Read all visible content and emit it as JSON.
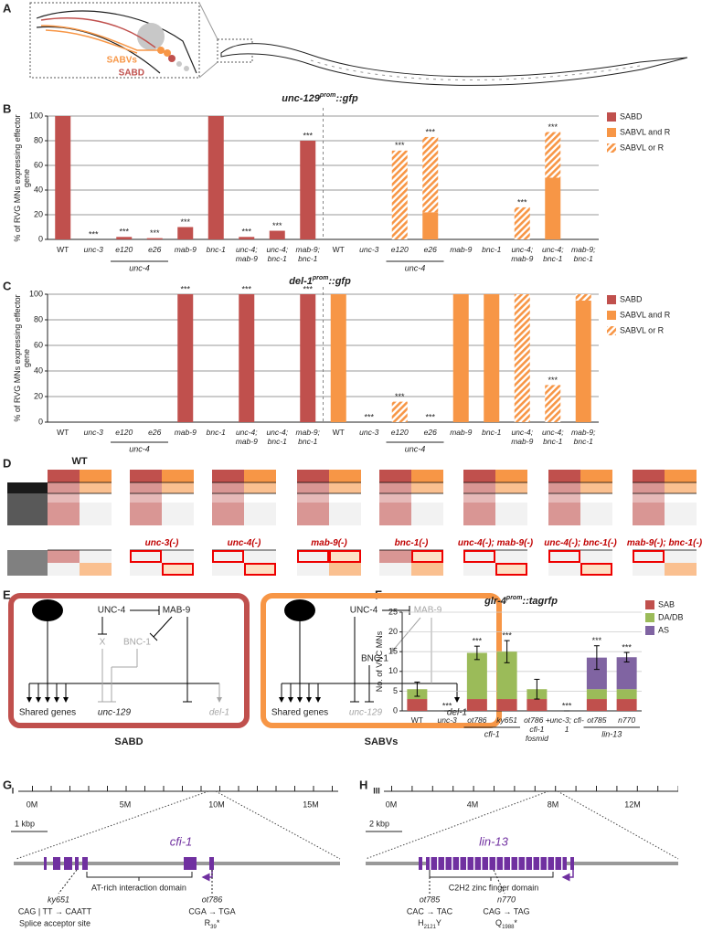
{
  "panel_labels": [
    "A",
    "B",
    "C",
    "D",
    "E",
    "F",
    "G",
    "H"
  ],
  "panel_a": {
    "labels": [
      "SABVs",
      "SABD"
    ]
  },
  "chart_data": [
    {
      "type": "bar",
      "title": {
        "gene": "unc-129",
        "superscript": "prom",
        "suffix": "::gfp"
      },
      "ylabel": "% of RVG MNs expressing effector gene",
      "categories": [
        "WT",
        "unc-3",
        "e120",
        "e26",
        "mab-9",
        "bnc-1",
        "unc-4; mab-9",
        "unc-4; bnc-1",
        "mab-9; bnc-1",
        "WT",
        "unc-3",
        "e120",
        "e26",
        "mab-9",
        "bnc-1",
        "unc-4; mab-9",
        "unc-4; bnc-1",
        "mab-9; bnc-1"
      ],
      "group_labels": [
        "unc-4",
        "unc-4"
      ],
      "series": [
        {
          "name": "SABD",
          "color": "#c0504d",
          "values": [
            100,
            0,
            2,
            1,
            10,
            100,
            2,
            7,
            80,
            null,
            null,
            null,
            null,
            null,
            null,
            null,
            null,
            null
          ]
        },
        {
          "name": "SABVL and R",
          "color": "#f79646",
          "values": [
            null,
            null,
            null,
            null,
            null,
            null,
            null,
            null,
            null,
            0,
            0,
            0,
            22,
            0,
            0,
            0,
            50,
            0
          ]
        },
        {
          "name": "SABVL or R",
          "color": "#f79646",
          "pattern": "hatch",
          "values": [
            null,
            null,
            null,
            null,
            null,
            null,
            null,
            null,
            null,
            0,
            0,
            72,
            61,
            0,
            0,
            26,
            37,
            0
          ]
        }
      ],
      "significance": [
        null,
        "***",
        "***",
        "***",
        "***",
        null,
        "***",
        "***",
        "***",
        null,
        null,
        "***",
        "***",
        null,
        null,
        "***",
        "***",
        null
      ],
      "ylim": [
        0,
        100
      ],
      "yticks": [
        0,
        20,
        40,
        60,
        80,
        100
      ],
      "grid": true
    },
    {
      "type": "bar",
      "title": {
        "gene": "del-1",
        "superscript": "prom",
        "suffix": "::gfp"
      },
      "ylabel": "% of RVG MNs expressing effector gene",
      "categories": [
        "WT",
        "unc-3",
        "e120",
        "e26",
        "mab-9",
        "bnc-1",
        "unc-4; mab-9",
        "unc-4; bnc-1",
        "mab-9; bnc-1",
        "WT",
        "unc-3",
        "e120",
        "e26",
        "mab-9",
        "bnc-1",
        "unc-4; mab-9",
        "unc-4; bnc-1",
        "mab-9; bnc-1"
      ],
      "group_labels": [
        "unc-4",
        "unc-4"
      ],
      "series": [
        {
          "name": "SABD",
          "color": "#c0504d",
          "values": [
            0,
            0,
            0,
            0,
            100,
            0,
            100,
            0,
            100,
            null,
            null,
            null,
            null,
            null,
            null,
            null,
            null,
            null
          ]
        },
        {
          "name": "SABVL and R",
          "color": "#f79646",
          "values": [
            null,
            null,
            null,
            null,
            null,
            null,
            null,
            null,
            null,
            100,
            0,
            0,
            0,
            100,
            100,
            0,
            0,
            95
          ]
        },
        {
          "name": "SABVL or R",
          "color": "#f79646",
          "pattern": "hatch",
          "values": [
            null,
            null,
            null,
            null,
            null,
            null,
            null,
            null,
            null,
            0,
            0,
            16,
            0,
            0,
            0,
            100,
            29,
            5
          ]
        }
      ],
      "significance": [
        null,
        null,
        null,
        null,
        "***",
        null,
        "***",
        null,
        "***",
        null,
        "***",
        "***",
        "***",
        null,
        null,
        null,
        "***",
        null
      ],
      "ylim": [
        0,
        100
      ],
      "yticks": [
        0,
        20,
        40,
        60,
        80,
        100
      ],
      "grid": true
    },
    {
      "type": "bar",
      "title": {
        "gene": "glr-4",
        "superscript": "prom",
        "suffix": "::tagrfp"
      },
      "ylabel": "No. of VNC MNs",
      "categories": [
        "WT",
        "unc-3",
        "ot786",
        "ky651",
        "ot786 + cfi-1 fosmid",
        "unc-3; cfi-1",
        "ot785",
        "n770"
      ],
      "group_labels": [
        "cfi-1",
        "lin-13"
      ],
      "series": [
        {
          "name": "SAB",
          "color": "#c0504d",
          "values": [
            3,
            0,
            3,
            3,
            3,
            0,
            3,
            3
          ]
        },
        {
          "name": "DA/DB",
          "color": "#9bbb59",
          "values": [
            2.5,
            0,
            11.7,
            12,
            2.5,
            0,
            2.5,
            2.5
          ]
        },
        {
          "name": "AS",
          "color": "#8064a2",
          "values": [
            0,
            0,
            0,
            0,
            0,
            0,
            8,
            8.1
          ]
        }
      ],
      "errors": [
        1.8,
        0,
        1.7,
        2.8,
        2.5,
        0,
        3,
        1.2
      ],
      "significance": [
        null,
        "***",
        "***",
        "***",
        null,
        "***",
        "***",
        "***"
      ],
      "ylim": [
        0,
        25
      ],
      "yticks": [
        0,
        5,
        10,
        15,
        20,
        25
      ],
      "grid": true
    }
  ],
  "panel_d": {
    "wt": "WT",
    "mutants": [
      "unc-3(-)",
      "unc-4(-)",
      "mab-9(-)",
      "bnc-1(-)",
      "unc-4(-); mab-9(-)",
      "unc-4(-); bnc-1(-)",
      "mab-9(-); bnc-1(-)"
    ]
  },
  "panel_e": {
    "left": {
      "title": "SABD",
      "factors": [
        "UNC-4",
        "MAB-9",
        "X",
        "BNC-1"
      ],
      "genes": [
        "Shared genes",
        "unc-129",
        "del-1"
      ]
    },
    "right": {
      "title": "SABVs",
      "factors": [
        "UNC-4",
        "MAB-9",
        "BNC-1"
      ],
      "genes": [
        "Shared genes",
        "unc-129",
        "del-1"
      ]
    }
  },
  "panel_g": {
    "chromosome": "I",
    "ticks": [
      "0M",
      "5M",
      "10M",
      "15M"
    ],
    "scale": "1 kbp",
    "gene": "cfi-1",
    "domain": "AT-rich interaction domain",
    "mutations": [
      {
        "allele": "ky651",
        "change": "CAG | TT → CAATT",
        "effect": "Splice acceptor site"
      },
      {
        "allele": "ot786",
        "change": "CGA → TGA",
        "protein": [
          "R",
          "39",
          "*"
        ]
      }
    ]
  },
  "panel_h": {
    "chromosome": "III",
    "ticks": [
      "0M",
      "4M",
      "8M",
      "12M"
    ],
    "scale": "2 kbp",
    "gene": "lin-13",
    "domain": "C2H2 zinc finger domain",
    "mutations": [
      {
        "allele": "ot785",
        "change": "CAC → TAC",
        "protein": [
          "H",
          "2121",
          "Y"
        ]
      },
      {
        "allele": "n770",
        "change": "CAG → TAG",
        "protein": [
          "Q",
          "1988",
          "*"
        ]
      }
    ]
  }
}
